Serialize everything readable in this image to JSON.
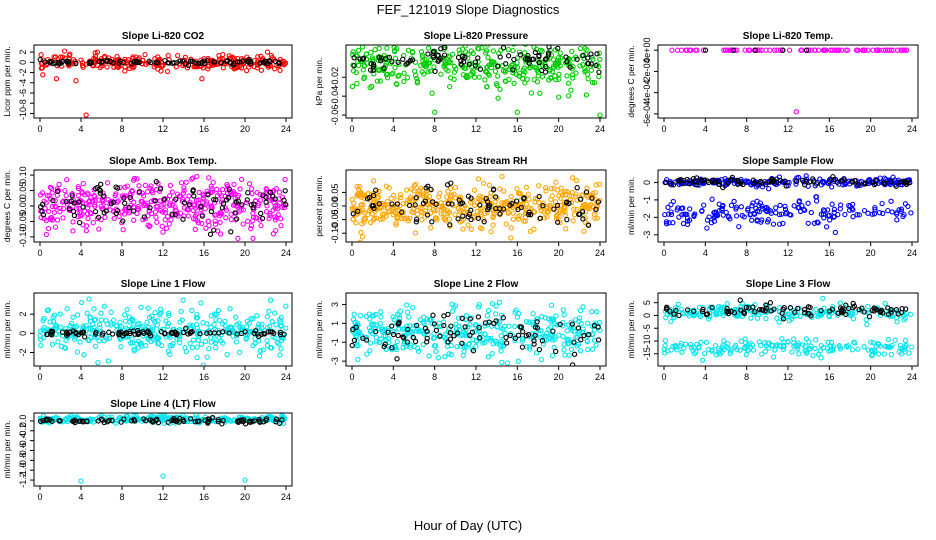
{
  "figure": {
    "title": "FEF_121019  Slope Diagnostics",
    "xlabel": "Hour of Day (UTC)"
  },
  "chart_data": [
    {
      "type": "scatter",
      "title": "Slope Li-820 CO2",
      "ylabel": "Licor ppm per min.",
      "xlim": [
        0,
        24
      ],
      "ylim": [
        -10.5,
        3
      ],
      "xticks": [
        0,
        4,
        8,
        12,
        16,
        20,
        24
      ],
      "yticks": [
        -10,
        -8,
        -6,
        -4,
        -2,
        0,
        2
      ],
      "ytick_labels": [
        "-10",
        "-8",
        "-6",
        "-4",
        "-2",
        "0",
        "2"
      ],
      "series": [
        {
          "color": "#ff0000",
          "center": 0,
          "spread": 0.7,
          "count": 260,
          "outliers": [
            [
              1.6,
              -3.2
            ],
            [
              3.5,
              -3.6
            ],
            [
              4.5,
              -10.3
            ],
            [
              15.8,
              -3.2
            ],
            [
              5.6,
              2.0
            ],
            [
              2.4,
              2.2
            ]
          ]
        },
        {
          "color": "#000000",
          "center": 0,
          "spread": 0.2,
          "count": 90
        }
      ]
    },
    {
      "type": "scatter",
      "title": "Slope Li-820 Pressure",
      "ylabel": "kPa per min.",
      "xlim": [
        0,
        24
      ],
      "ylim": [
        -0.061,
        0.012
      ],
      "xticks": [
        0,
        4,
        8,
        12,
        16,
        20,
        24
      ],
      "yticks": [
        -0.06,
        -0.04,
        -0.02
      ],
      "ytick_labels": [
        "-0.06",
        "-0.04",
        "-0.02"
      ],
      "series": [
        {
          "color": "#00cc00",
          "center": -0.008,
          "spread": 0.012,
          "count": 360,
          "outliers": [
            [
              8,
              -0.057
            ],
            [
              16,
              -0.057
            ],
            [
              20,
              -0.041
            ],
            [
              24,
              -0.06
            ]
          ]
        },
        {
          "color": "#000000",
          "center": -0.002,
          "spread": 0.006,
          "count": 90
        }
      ]
    },
    {
      "type": "scatter",
      "title": "Slope Li-820 Temp.",
      "ylabel": "degrees C per min.",
      "xlim": [
        0,
        24
      ],
      "ylim": [
        -0.00062,
        3e-05
      ],
      "xticks": [
        0,
        4,
        8,
        12,
        16,
        20,
        24
      ],
      "yticks": [
        -0.0006,
        -0.0004,
        -0.0002,
        0
      ],
      "ytick_labels": [
        "-6e-04",
        "-4e-04",
        "-2e-04",
        "0e+00"
      ],
      "series": [
        {
          "color": "#ff00ff",
          "center": 0,
          "spread": 0,
          "count": 90,
          "outliers": [
            [
              12.8,
              -0.00058
            ]
          ]
        },
        {
          "color": "#000000",
          "center": 0,
          "spread": 0,
          "count": 5
        }
      ]
    },
    {
      "type": "scatter",
      "title": "Slope Amb. Box Temp.",
      "ylabel": "degrees C per min.",
      "xlim": [
        0,
        24
      ],
      "ylim": [
        -0.11,
        0.11
      ],
      "xticks": [
        0,
        4,
        8,
        12,
        16,
        20,
        24
      ],
      "yticks": [
        -0.1,
        -0.05,
        0,
        0.05,
        0.1
      ],
      "ytick_labels": [
        "-0.10",
        "-0.05",
        "0.00",
        "0.05",
        "0.10"
      ],
      "series": [
        {
          "color": "#ff00ff",
          "center": 0,
          "spread": 0.04,
          "count": 420
        },
        {
          "color": "#000000",
          "center": 0,
          "spread": 0.035,
          "count": 90
        }
      ]
    },
    {
      "type": "scatter",
      "title": "Slope Gas Stream RH",
      "ylabel": "percent per min.",
      "xlim": [
        0,
        24
      ],
      "ylim": [
        -0.125,
        0.125
      ],
      "xticks": [
        0,
        4,
        8,
        12,
        16,
        20,
        24
      ],
      "yticks": [
        -0.1,
        -0.05,
        0,
        0.05
      ],
      "ytick_labels": [
        "-0.10",
        "-0.05",
        "0.00",
        "0.05"
      ],
      "series": [
        {
          "color": "#ffa500",
          "center": 0,
          "spread": 0.04,
          "count": 460
        },
        {
          "color": "#000000",
          "center": 0,
          "spread": 0.04,
          "count": 90
        }
      ]
    },
    {
      "type": "scatter",
      "title": "Slope Sample Flow",
      "ylabel": "ml/min per min.",
      "xlim": [
        0,
        24
      ],
      "ylim": [
        -3.3,
        0.6
      ],
      "xticks": [
        0,
        4,
        8,
        12,
        16,
        20,
        24
      ],
      "yticks": [
        -3,
        -2,
        -1,
        0
      ],
      "ytick_labels": [
        "-3",
        "-2",
        "-1",
        "0"
      ],
      "series": [
        {
          "color": "#0000ff",
          "center": 0,
          "spread": 0.12,
          "count": 200
        },
        {
          "color": "#0000ff",
          "center": -1.7,
          "spread": 0.35,
          "count": 180
        },
        {
          "color": "#000000",
          "center": 0.05,
          "spread": 0.1,
          "count": 90
        }
      ]
    },
    {
      "type": "scatter",
      "title": "Slope Line 1 Flow",
      "ylabel": "ml/min per min.",
      "xlim": [
        0,
        24
      ],
      "ylim": [
        -3.2,
        4.0
      ],
      "xticks": [
        0,
        4,
        8,
        12,
        16,
        20,
        24
      ],
      "yticks": [
        -2,
        0,
        2
      ],
      "ytick_labels": [
        "-2",
        "0",
        "2"
      ],
      "series": [
        {
          "color": "#00e5ee",
          "center": 0.3,
          "spread": 1.2,
          "count": 380
        },
        {
          "color": "#000000",
          "center": 0,
          "spread": 0.15,
          "count": 90
        }
      ]
    },
    {
      "type": "scatter",
      "title": "Slope Line 2 Flow",
      "ylabel": "ml/min per min.",
      "xlim": [
        0,
        24
      ],
      "ylim": [
        -3.3,
        4.0
      ],
      "xticks": [
        0,
        4,
        8,
        12,
        16,
        20,
        24
      ],
      "yticks": [
        -3,
        -1,
        1,
        3
      ],
      "ytick_labels": [
        "-3",
        "-1",
        "1",
        "3"
      ],
      "series": [
        {
          "color": "#00e5ee",
          "center": 0,
          "spread": 1.3,
          "count": 380
        },
        {
          "color": "#000000",
          "center": 0,
          "spread": 1.1,
          "count": 90
        }
      ]
    },
    {
      "type": "scatter",
      "title": "Slope Line 3 Flow",
      "ylabel": "ml/min per min.",
      "xlim": [
        0,
        24
      ],
      "ylim": [
        -19,
        8
      ],
      "xticks": [
        0,
        4,
        8,
        12,
        16,
        20,
        24
      ],
      "yticks": [
        -15,
        -10,
        -5,
        0,
        5
      ],
      "ytick_labels": [
        "-15",
        "-10",
        "-5",
        "0",
        "5"
      ],
      "series": [
        {
          "color": "#00e5ee",
          "center": 1,
          "spread": 1.5,
          "count": 200
        },
        {
          "color": "#00e5ee",
          "center": -12.5,
          "spread": 1.6,
          "count": 180
        },
        {
          "color": "#000000",
          "center": 2,
          "spread": 1.2,
          "count": 90
        }
      ]
    },
    {
      "type": "scatter",
      "title": "Slope Line 4 (LT) Flow",
      "ylabel": "ml/min per min.",
      "xlim": [
        0,
        24
      ],
      "ylim": [
        -1.28,
        0.12
      ],
      "xticks": [
        0,
        4,
        8,
        12,
        16,
        20,
        24
      ],
      "yticks": [
        -1.2,
        -1.0,
        -0.8,
        -0.6,
        -0.4,
        -0.2,
        0
      ],
      "ytick_labels": [
        "-1.2",
        "-1.0",
        "-0.8",
        "-0.6",
        "-0.4",
        "-0.2",
        "0.0"
      ],
      "series": [
        {
          "color": "#00e5ee",
          "center": 0.03,
          "spread": 0.035,
          "count": 300,
          "outliers": [
            [
              4,
              -1.22
            ],
            [
              12,
              -1.12
            ],
            [
              20,
              -1.2
            ]
          ]
        },
        {
          "color": "#000000",
          "center": 0.0,
          "spread": 0.025,
          "count": 90
        }
      ]
    }
  ]
}
